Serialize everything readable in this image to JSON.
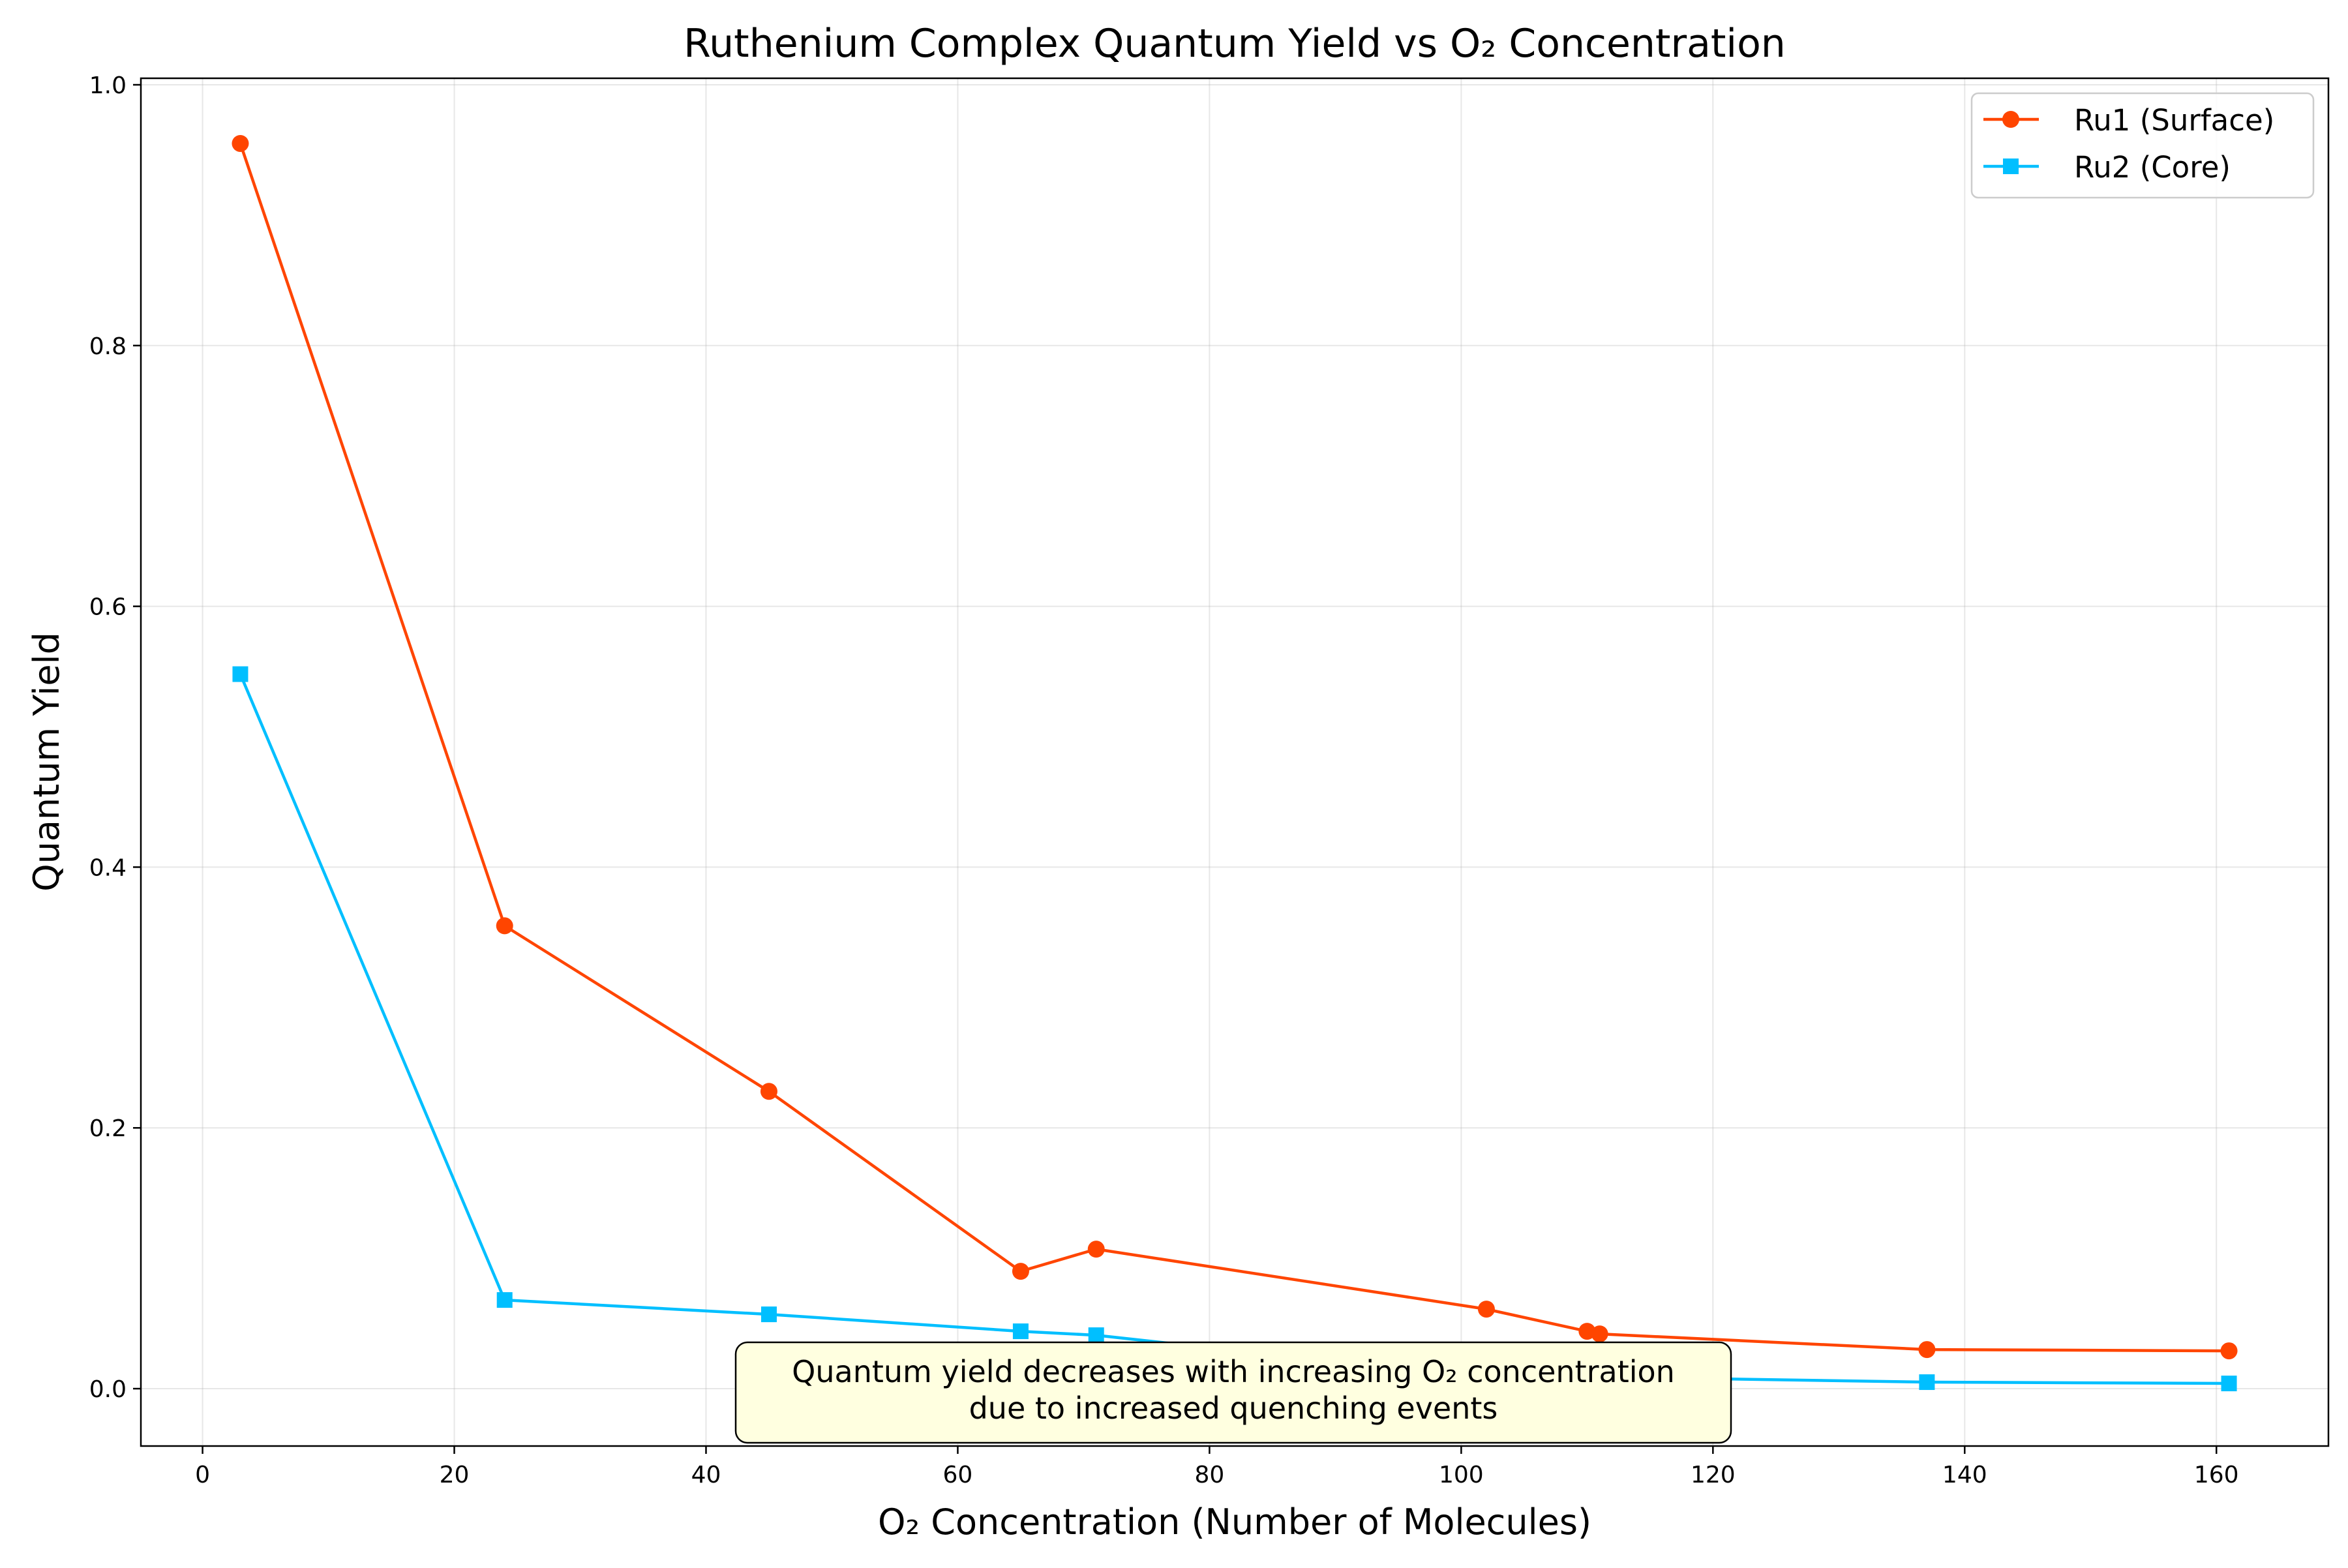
{
  "chart_data": {
    "type": "line",
    "title": "Ruthenium Complex Quantum Yield vs O₂ Concentration",
    "xlabel": "O₂ Concentration (Number of Molecules)",
    "ylabel": "Quantum Yield",
    "xlim": [
      -4.9,
      168.9
    ],
    "ylim": [
      -0.044,
      1.005
    ],
    "xticks": [
      0,
      20,
      40,
      60,
      80,
      100,
      120,
      140,
      160
    ],
    "yticks": [
      0.0,
      0.2,
      0.4,
      0.6,
      0.8,
      1.0
    ],
    "xtick_labels": [
      "0",
      "20",
      "40",
      "60",
      "80",
      "100",
      "120",
      "140",
      "160"
    ],
    "ytick_labels": [
      "0.0",
      "0.2",
      "0.4",
      "0.6",
      "0.8",
      "1.0"
    ],
    "grid": true,
    "legend_position": "top-right",
    "series": [
      {
        "name": "Ru1 (Surface)",
        "color": "#ff4500",
        "marker": "circle",
        "x": [
          3,
          24,
          45,
          65,
          71,
          102,
          110,
          111,
          137,
          161
        ],
        "y": [
          0.955,
          0.355,
          0.228,
          0.09,
          0.107,
          0.061,
          0.044,
          0.042,
          0.03,
          0.029
        ]
      },
      {
        "name": "Ru2 (Core)",
        "color": "#00bfff",
        "marker": "square",
        "x": [
          3,
          24,
          45,
          65,
          71,
          102,
          111,
          137,
          161
        ],
        "y": [
          0.548,
          0.068,
          0.057,
          0.044,
          0.041,
          0.008,
          0.009,
          0.005,
          0.004
        ]
      }
    ],
    "annotation": {
      "lines": [
        "Quantum yield decreases with increasing O₂ concentration",
        "due to increased quenching events"
      ],
      "box_color": "#ffffe0"
    }
  }
}
